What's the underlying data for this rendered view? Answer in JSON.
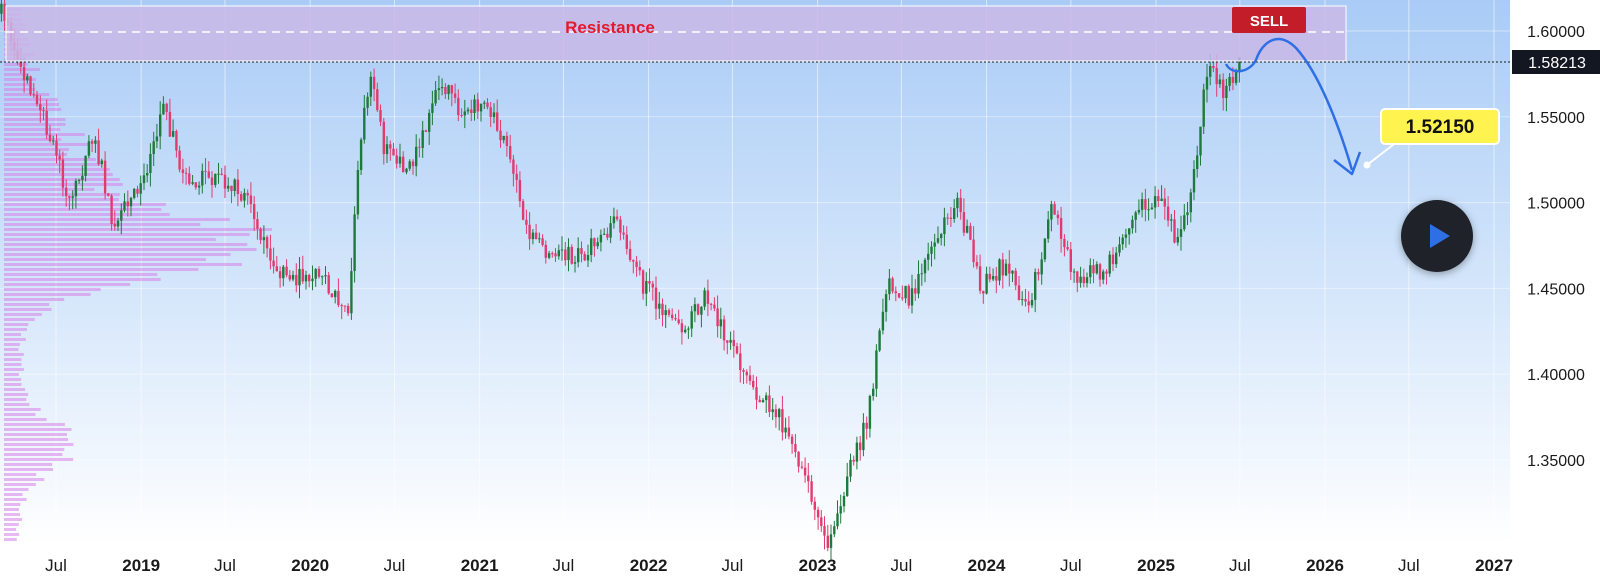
{
  "chart_data": {
    "type": "candlestick",
    "title": "",
    "y_ticks": [
      "1.60000",
      "1.55000",
      "1.50000",
      "1.45000",
      "1.40000",
      "1.35000"
    ],
    "ylim": [
      1.3,
      1.62
    ],
    "x_ticks": [
      {
        "label": "Jul",
        "date": "2018-07-01",
        "year": false
      },
      {
        "label": "2019",
        "date": "2019-01-01",
        "year": true
      },
      {
        "label": "Jul",
        "date": "2019-07-01",
        "year": false
      },
      {
        "label": "2020",
        "date": "2020-01-01",
        "year": true
      },
      {
        "label": "Jul",
        "date": "2020-07-01",
        "year": false
      },
      {
        "label": "2021",
        "date": "2021-01-01",
        "year": true
      },
      {
        "label": "Jul",
        "date": "2021-07-01",
        "year": false
      },
      {
        "label": "2022",
        "date": "2022-01-01",
        "year": true
      },
      {
        "label": "Jul",
        "date": "2022-07-01",
        "year": false
      },
      {
        "label": "2023",
        "date": "2023-01-01",
        "year": true
      },
      {
        "label": "Jul",
        "date": "2023-07-01",
        "year": false
      },
      {
        "label": "2024",
        "date": "2024-01-01",
        "year": true
      },
      {
        "label": "Jul",
        "date": "2024-07-01",
        "year": false
      },
      {
        "label": "2025",
        "date": "2025-01-01",
        "year": true
      },
      {
        "label": "Jul",
        "date": "2025-07-01",
        "year": false
      },
      {
        "label": "2026",
        "date": "2026-01-01",
        "year": true
      },
      {
        "label": "Jul",
        "date": "2026-07-01",
        "year": false
      },
      {
        "label": "2027",
        "date": "2027-01-01",
        "year": true
      }
    ],
    "price_path": [
      [
        "2018-03-05",
        1.61
      ],
      [
        "2018-04-20",
        1.575
      ],
      [
        "2018-06-10",
        1.545
      ],
      [
        "2018-08-01",
        1.5
      ],
      [
        "2018-09-20",
        1.54
      ],
      [
        "2018-11-01",
        1.49
      ],
      [
        "2019-01-01",
        1.51
      ],
      [
        "2019-02-20",
        1.555
      ],
      [
        "2019-04-10",
        1.51
      ],
      [
        "2019-06-10",
        1.515
      ],
      [
        "2019-08-10",
        1.505
      ],
      [
        "2019-09-20",
        1.475
      ],
      [
        "2019-11-15",
        1.455
      ],
      [
        "2020-01-10",
        1.46
      ],
      [
        "2020-03-05",
        1.445
      ],
      [
        "2020-03-25",
        1.43
      ],
      [
        "2020-04-10",
        1.51
      ],
      [
        "2020-05-08",
        1.575
      ],
      [
        "2020-06-10",
        1.53
      ],
      [
        "2020-08-10",
        1.52
      ],
      [
        "2020-10-01",
        1.57
      ],
      [
        "2020-11-20",
        1.555
      ],
      [
        "2021-01-10",
        1.56
      ],
      [
        "2021-02-25",
        1.535
      ],
      [
        "2021-04-20",
        1.48
      ],
      [
        "2021-06-10",
        1.47
      ],
      [
        "2021-08-10",
        1.47
      ],
      [
        "2021-10-20",
        1.49
      ],
      [
        "2021-12-01",
        1.46
      ],
      [
        "2022-01-10",
        1.445
      ],
      [
        "2022-03-10",
        1.425
      ],
      [
        "2022-05-05",
        1.445
      ],
      [
        "2022-06-20",
        1.42
      ],
      [
        "2022-08-10",
        1.395
      ],
      [
        "2022-10-10",
        1.375
      ],
      [
        "2022-11-20",
        1.35
      ],
      [
        "2022-12-20",
        1.325
      ],
      [
        "2023-01-25",
        1.3
      ],
      [
        "2023-03-01",
        1.335
      ],
      [
        "2023-04-20",
        1.375
      ],
      [
        "2023-06-01",
        1.455
      ],
      [
        "2023-07-20",
        1.445
      ],
      [
        "2023-09-20",
        1.48
      ],
      [
        "2023-11-01",
        1.5
      ],
      [
        "2023-12-20",
        1.45
      ],
      [
        "2024-02-10",
        1.465
      ],
      [
        "2024-04-01",
        1.435
      ],
      [
        "2024-05-20",
        1.5
      ],
      [
        "2024-07-10",
        1.455
      ],
      [
        "2024-09-01",
        1.46
      ],
      [
        "2024-10-20",
        1.475
      ],
      [
        "2024-12-10",
        1.5
      ],
      [
        "2025-01-10",
        1.505
      ],
      [
        "2025-02-20",
        1.475
      ],
      [
        "2025-03-20",
        1.51
      ],
      [
        "2025-04-25",
        1.585
      ],
      [
        "2025-05-20",
        1.565
      ],
      [
        "2025-06-20",
        1.575
      ],
      [
        "2025-07-01",
        1.582
      ]
    ],
    "current_price": "1.58213",
    "annotations": {
      "zone_label": "Resistance",
      "signal_label": "SELL",
      "target_label": "1.52150"
    },
    "colors": {
      "up": "#1e7a3a",
      "down": "#e23a6e",
      "zone_fill": "#c9b8e8",
      "zone_text": "#e5192c",
      "sell_badge": "#c41d2a",
      "projection": "#2f6fe6",
      "target_badge": "#fff44f",
      "profile": "#d77fe8"
    }
  }
}
